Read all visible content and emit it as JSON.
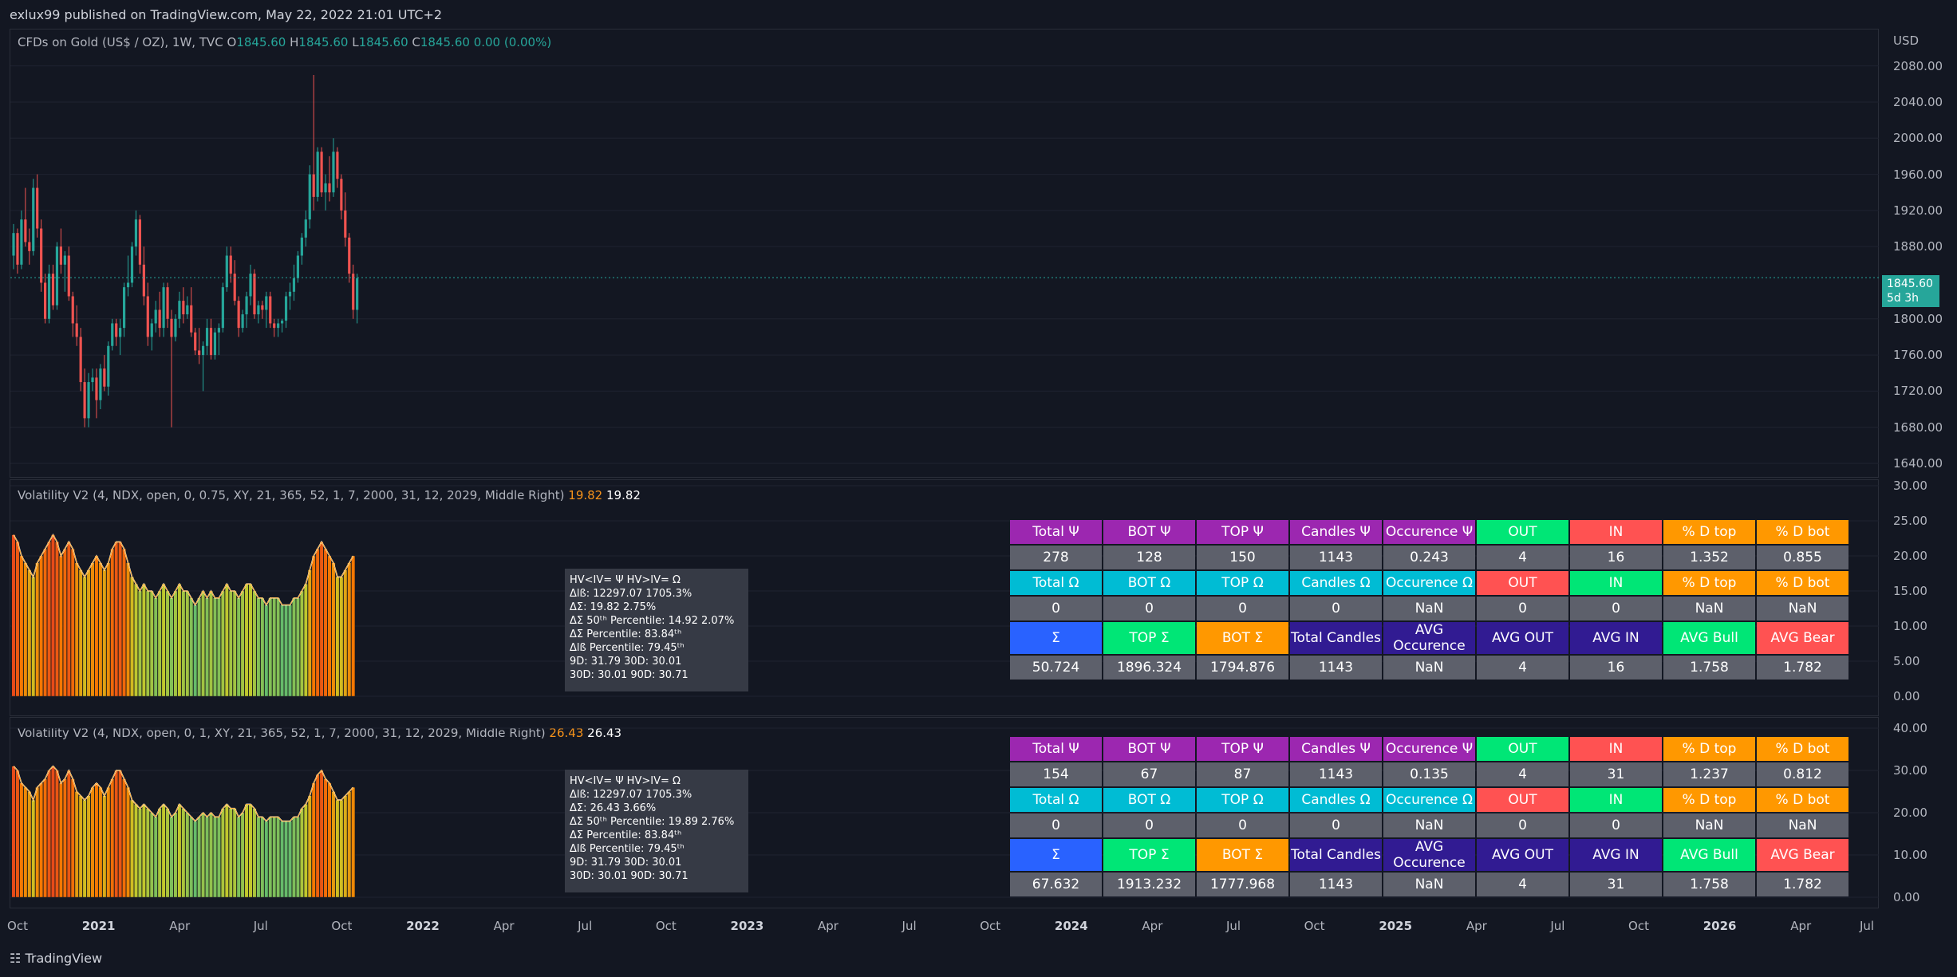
{
  "header": {
    "published": "exlux99 published on TradingView.com, May 22, 2022 21:01 UTC+2"
  },
  "main_pane": {
    "symbol": "CFDs on Gold (US$ / OZ), 1W, TVC",
    "o_label": "O",
    "o_value": "1845.60",
    "h_label": "H",
    "h_value": "1845.60",
    "l_label": "L",
    "l_value": "1845.60",
    "c_label": "C",
    "c_value": "1845.60",
    "change": "0.00 (0.00%)",
    "currency": "USD",
    "y_ticks": [
      "2080.00",
      "2040.00",
      "2000.00",
      "1960.00",
      "1920.00",
      "1880.00",
      "1800.00",
      "1760.00",
      "1720.00",
      "1680.00",
      "1640.00"
    ],
    "last_price": "1845.60",
    "countdown": "5d 3h",
    "up_color": "#26a69a",
    "down_color": "#ef5350",
    "candles": [
      [
        1870,
        1905,
        1855,
        1895
      ],
      [
        1895,
        1900,
        1850,
        1860
      ],
      [
        1860,
        1920,
        1855,
        1910
      ],
      [
        1910,
        1945,
        1880,
        1885
      ],
      [
        1885,
        1900,
        1860,
        1875
      ],
      [
        1875,
        1955,
        1870,
        1945
      ],
      [
        1945,
        1960,
        1890,
        1900
      ],
      [
        1900,
        1910,
        1830,
        1840
      ],
      [
        1840,
        1850,
        1795,
        1800
      ],
      [
        1800,
        1860,
        1795,
        1850
      ],
      [
        1850,
        1860,
        1810,
        1815
      ],
      [
        1815,
        1885,
        1810,
        1880
      ],
      [
        1880,
        1900,
        1850,
        1860
      ],
      [
        1860,
        1875,
        1830,
        1870
      ],
      [
        1870,
        1880,
        1820,
        1825
      ],
      [
        1825,
        1830,
        1780,
        1795
      ],
      [
        1795,
        1815,
        1770,
        1780
      ],
      [
        1780,
        1790,
        1720,
        1730
      ],
      [
        1730,
        1745,
        1680,
        1690
      ],
      [
        1690,
        1740,
        1680,
        1730
      ],
      [
        1730,
        1745,
        1720,
        1735
      ],
      [
        1735,
        1745,
        1690,
        1710
      ],
      [
        1710,
        1750,
        1700,
        1745
      ],
      [
        1745,
        1760,
        1720,
        1725
      ],
      [
        1725,
        1775,
        1715,
        1770
      ],
      [
        1770,
        1800,
        1765,
        1795
      ],
      [
        1795,
        1800,
        1770,
        1780
      ],
      [
        1780,
        1800,
        1760,
        1790
      ],
      [
        1790,
        1840,
        1780,
        1835
      ],
      [
        1835,
        1870,
        1825,
        1840
      ],
      [
        1840,
        1885,
        1835,
        1880
      ],
      [
        1880,
        1920,
        1870,
        1910
      ],
      [
        1910,
        1915,
        1850,
        1860
      ],
      [
        1860,
        1880,
        1815,
        1825
      ],
      [
        1825,
        1840,
        1770,
        1780
      ],
      [
        1780,
        1800,
        1765,
        1795
      ],
      [
        1795,
        1820,
        1785,
        1810
      ],
      [
        1810,
        1830,
        1780,
        1790
      ],
      [
        1790,
        1840,
        1780,
        1835
      ],
      [
        1835,
        1840,
        1790,
        1800
      ],
      [
        1800,
        1810,
        1680,
        1780
      ],
      [
        1780,
        1805,
        1775,
        1800
      ],
      [
        1800,
        1830,
        1790,
        1820
      ],
      [
        1820,
        1835,
        1795,
        1805
      ],
      [
        1805,
        1825,
        1800,
        1815
      ],
      [
        1815,
        1835,
        1780,
        1785
      ],
      [
        1785,
        1790,
        1760,
        1765
      ],
      [
        1765,
        1790,
        1750,
        1760
      ],
      [
        1760,
        1775,
        1720,
        1770
      ],
      [
        1770,
        1800,
        1760,
        1790
      ],
      [
        1790,
        1800,
        1755,
        1760
      ],
      [
        1760,
        1790,
        1755,
        1785
      ],
      [
        1785,
        1795,
        1760,
        1790
      ],
      [
        1790,
        1840,
        1785,
        1835
      ],
      [
        1835,
        1880,
        1830,
        1870
      ],
      [
        1870,
        1880,
        1840,
        1850
      ],
      [
        1850,
        1865,
        1815,
        1820
      ],
      [
        1820,
        1825,
        1780,
        1790
      ],
      [
        1790,
        1810,
        1785,
        1805
      ],
      [
        1805,
        1830,
        1790,
        1825
      ],
      [
        1825,
        1860,
        1815,
        1850
      ],
      [
        1850,
        1855,
        1800,
        1805
      ],
      [
        1805,
        1820,
        1795,
        1815
      ],
      [
        1815,
        1820,
        1800,
        1810
      ],
      [
        1810,
        1830,
        1790,
        1825
      ],
      [
        1825,
        1830,
        1790,
        1795
      ],
      [
        1795,
        1800,
        1780,
        1790
      ],
      [
        1790,
        1800,
        1780,
        1795
      ],
      [
        1795,
        1800,
        1785,
        1798
      ],
      [
        1798,
        1830,
        1790,
        1825
      ],
      [
        1825,
        1840,
        1810,
        1830
      ],
      [
        1830,
        1860,
        1820,
        1845
      ],
      [
        1845,
        1875,
        1840,
        1870
      ],
      [
        1870,
        1895,
        1860,
        1890
      ],
      [
        1890,
        1920,
        1880,
        1910
      ],
      [
        1910,
        1970,
        1900,
        1960
      ],
      [
        1960,
        2070,
        1920,
        1935
      ],
      [
        1935,
        1990,
        1930,
        1985
      ],
      [
        1985,
        1990,
        1935,
        1940
      ],
      [
        1940,
        1960,
        1920,
        1950
      ],
      [
        1950,
        1980,
        1930,
        1940
      ],
      [
        1940,
        2000,
        1935,
        1985
      ],
      [
        1985,
        1990,
        1945,
        1955
      ],
      [
        1955,
        1960,
        1910,
        1920
      ],
      [
        1920,
        1940,
        1880,
        1890
      ],
      [
        1890,
        1895,
        1840,
        1850
      ],
      [
        1850,
        1860,
        1800,
        1810
      ],
      [
        1810,
        1850,
        1795,
        1845
      ]
    ]
  },
  "pane2": {
    "title": "Volatility V2 (4, NDX, open, 0, 0.75, XY, 21, 365, 52, 1, 7, 2000, 31, 12, 2029, Middle Right)",
    "value_orange": "19.82",
    "value_white": "19.82",
    "y_ticks": [
      "30.00",
      "25.00",
      "20.00",
      "15.00",
      "10.00",
      "5.00",
      "0.00"
    ],
    "y_range": [
      0,
      30
    ],
    "infobox": [
      "HV<IV= Ψ  HV>IV= Ω",
      "Δlß: 12297.07  1705.3%",
      "ΔΣ: 19.82  2.75%",
      "ΔΣ 50ᵗʰ Percentile: 14.92  2.07%",
      "ΔΣ Percentile: 83.84ᵗʰ",
      "Δlß Percentile: 79.45ᵗʰ",
      "9D: 31.79  30D: 30.01",
      "30D: 30.01  90D: 30.71"
    ],
    "table": [
      [
        {
          "t": "Total Ψ",
          "c": "#9c27b0"
        },
        {
          "t": "BOT Ψ",
          "c": "#9c27b0"
        },
        {
          "t": "TOP Ψ",
          "c": "#9c27b0"
        },
        {
          "t": "Candles Ψ",
          "c": "#9c27b0"
        },
        {
          "t": "Occurence Ψ",
          "c": "#9c27b0"
        },
        {
          "t": "OUT",
          "c": "#00e676"
        },
        {
          "t": "IN",
          "c": "#ff5252"
        },
        {
          "t": "% D top",
          "c": "#ff9800"
        },
        {
          "t": "% D bot",
          "c": "#ff9800"
        }
      ],
      [
        {
          "t": "278",
          "c": "#5d606b"
        },
        {
          "t": "128",
          "c": "#5d606b"
        },
        {
          "t": "150",
          "c": "#5d606b"
        },
        {
          "t": "1143",
          "c": "#5d606b"
        },
        {
          "t": "0.243",
          "c": "#5d606b"
        },
        {
          "t": "4",
          "c": "#5d606b"
        },
        {
          "t": "16",
          "c": "#5d606b"
        },
        {
          "t": "1.352",
          "c": "#5d606b"
        },
        {
          "t": "0.855",
          "c": "#5d606b"
        }
      ],
      [
        {
          "t": "Total Ω",
          "c": "#00bcd4"
        },
        {
          "t": "BOT Ω",
          "c": "#00bcd4"
        },
        {
          "t": "TOP Ω",
          "c": "#00bcd4"
        },
        {
          "t": "Candles Ω",
          "c": "#00bcd4"
        },
        {
          "t": "Occurence Ω",
          "c": "#00bcd4"
        },
        {
          "t": "OUT",
          "c": "#ff5252"
        },
        {
          "t": "IN",
          "c": "#00e676"
        },
        {
          "t": "% D top",
          "c": "#ff9800"
        },
        {
          "t": "% D bot",
          "c": "#ff9800"
        }
      ],
      [
        {
          "t": "0",
          "c": "#5d606b"
        },
        {
          "t": "0",
          "c": "#5d606b"
        },
        {
          "t": "0",
          "c": "#5d606b"
        },
        {
          "t": "0",
          "c": "#5d606b"
        },
        {
          "t": "NaN",
          "c": "#5d606b"
        },
        {
          "t": "0",
          "c": "#5d606b"
        },
        {
          "t": "0",
          "c": "#5d606b"
        },
        {
          "t": "NaN",
          "c": "#5d606b"
        },
        {
          "t": "NaN",
          "c": "#5d606b"
        }
      ],
      [
        {
          "t": "Σ",
          "c": "#2962ff"
        },
        {
          "t": "TOP Σ",
          "c": "#00e676"
        },
        {
          "t": "BOT Σ",
          "c": "#ff9800"
        },
        {
          "t": "Total Candles",
          "c": "#311b92"
        },
        {
          "t": "AVG Occurence",
          "c": "#311b92"
        },
        {
          "t": "AVG OUT",
          "c": "#311b92"
        },
        {
          "t": "AVG IN",
          "c": "#311b92"
        },
        {
          "t": "AVG Bull",
          "c": "#00e676"
        },
        {
          "t": "AVG Bear",
          "c": "#ff5252"
        }
      ],
      [
        {
          "t": "50.724",
          "c": "#5d606b"
        },
        {
          "t": "1896.324",
          "c": "#5d606b"
        },
        {
          "t": "1794.876",
          "c": "#5d606b"
        },
        {
          "t": "1143",
          "c": "#5d606b"
        },
        {
          "t": "NaN",
          "c": "#5d606b"
        },
        {
          "t": "4",
          "c": "#5d606b"
        },
        {
          "t": "16",
          "c": "#5d606b"
        },
        {
          "t": "1.758",
          "c": "#5d606b"
        },
        {
          "t": "1.782",
          "c": "#5d606b"
        }
      ]
    ],
    "bars": [
      23,
      22,
      20,
      19,
      18,
      17,
      19,
      20,
      21,
      22,
      23,
      22,
      20,
      21,
      22,
      21,
      19,
      18,
      17,
      18,
      19,
      20,
      19,
      18,
      19,
      21,
      22,
      22,
      21,
      19,
      17,
      16,
      15,
      16,
      15,
      15,
      14,
      15,
      16,
      15,
      14,
      15,
      16,
      15,
      15,
      14,
      13,
      14,
      15,
      14,
      15,
      14,
      14,
      15,
      16,
      15,
      15,
      14,
      15,
      16,
      16,
      15,
      14,
      14,
      13,
      14,
      14,
      14,
      13,
      13,
      13,
      14,
      14,
      15,
      16,
      18,
      20,
      21,
      22,
      21,
      20,
      19,
      17,
      17,
      18,
      19,
      20
    ]
  },
  "pane3": {
    "title": "Volatility V2 (4, NDX, open, 0, 1, XY, 21, 365, 52, 1, 7, 2000, 31, 12, 2029, Middle Right)",
    "value_orange": "26.43",
    "value_white": "26.43",
    "y_ticks": [
      "40.00",
      "30.00",
      "20.00",
      "10.00",
      "0.00"
    ],
    "y_range": [
      0,
      40
    ],
    "infobox": [
      "HV<IV= Ψ  HV>IV= Ω",
      "Δlß: 12297.07  1705.3%",
      "ΔΣ: 26.43  3.66%",
      "ΔΣ 50ᵗʰ Percentile: 19.89  2.76%",
      "ΔΣ Percentile: 83.84ᵗʰ",
      "Δlß Percentile: 79.45ᵗʰ",
      "9D: 31.79  30D: 30.01",
      "30D: 30.01  90D: 30.71"
    ],
    "table": [
      [
        {
          "t": "Total Ψ",
          "c": "#9c27b0"
        },
        {
          "t": "BOT Ψ",
          "c": "#9c27b0"
        },
        {
          "t": "TOP Ψ",
          "c": "#9c27b0"
        },
        {
          "t": "Candles Ψ",
          "c": "#9c27b0"
        },
        {
          "t": "Occurence Ψ",
          "c": "#9c27b0"
        },
        {
          "t": "OUT",
          "c": "#00e676"
        },
        {
          "t": "IN",
          "c": "#ff5252"
        },
        {
          "t": "% D top",
          "c": "#ff9800"
        },
        {
          "t": "% D bot",
          "c": "#ff9800"
        }
      ],
      [
        {
          "t": "154",
          "c": "#5d606b"
        },
        {
          "t": "67",
          "c": "#5d606b"
        },
        {
          "t": "87",
          "c": "#5d606b"
        },
        {
          "t": "1143",
          "c": "#5d606b"
        },
        {
          "t": "0.135",
          "c": "#5d606b"
        },
        {
          "t": "4",
          "c": "#5d606b"
        },
        {
          "t": "31",
          "c": "#5d606b"
        },
        {
          "t": "1.237",
          "c": "#5d606b"
        },
        {
          "t": "0.812",
          "c": "#5d606b"
        }
      ],
      [
        {
          "t": "Total Ω",
          "c": "#00bcd4"
        },
        {
          "t": "BOT Ω",
          "c": "#00bcd4"
        },
        {
          "t": "TOP Ω",
          "c": "#00bcd4"
        },
        {
          "t": "Candles Ω",
          "c": "#00bcd4"
        },
        {
          "t": "Occurence Ω",
          "c": "#00bcd4"
        },
        {
          "t": "OUT",
          "c": "#ff5252"
        },
        {
          "t": "IN",
          "c": "#00e676"
        },
        {
          "t": "% D top",
          "c": "#ff9800"
        },
        {
          "t": "% D bot",
          "c": "#ff9800"
        }
      ],
      [
        {
          "t": "0",
          "c": "#5d606b"
        },
        {
          "t": "0",
          "c": "#5d606b"
        },
        {
          "t": "0",
          "c": "#5d606b"
        },
        {
          "t": "0",
          "c": "#5d606b"
        },
        {
          "t": "NaN",
          "c": "#5d606b"
        },
        {
          "t": "0",
          "c": "#5d606b"
        },
        {
          "t": "0",
          "c": "#5d606b"
        },
        {
          "t": "NaN",
          "c": "#5d606b"
        },
        {
          "t": "NaN",
          "c": "#5d606b"
        }
      ],
      [
        {
          "t": "Σ",
          "c": "#2962ff"
        },
        {
          "t": "TOP Σ",
          "c": "#00e676"
        },
        {
          "t": "BOT Σ",
          "c": "#ff9800"
        },
        {
          "t": "Total Candles",
          "c": "#311b92"
        },
        {
          "t": "AVG Occurence",
          "c": "#311b92"
        },
        {
          "t": "AVG OUT",
          "c": "#311b92"
        },
        {
          "t": "AVG IN",
          "c": "#311b92"
        },
        {
          "t": "AVG Bull",
          "c": "#00e676"
        },
        {
          "t": "AVG Bear",
          "c": "#ff5252"
        }
      ],
      [
        {
          "t": "67.632",
          "c": "#5d606b"
        },
        {
          "t": "1913.232",
          "c": "#5d606b"
        },
        {
          "t": "1777.968",
          "c": "#5d606b"
        },
        {
          "t": "1143",
          "c": "#5d606b"
        },
        {
          "t": "NaN",
          "c": "#5d606b"
        },
        {
          "t": "4",
          "c": "#5d606b"
        },
        {
          "t": "31",
          "c": "#5d606b"
        },
        {
          "t": "1.758",
          "c": "#5d606b"
        },
        {
          "t": "1.782",
          "c": "#5d606b"
        }
      ]
    ],
    "bars": [
      31,
      30,
      27,
      26,
      25,
      23,
      26,
      27,
      28,
      30,
      31,
      30,
      27,
      28,
      30,
      28,
      25,
      24,
      23,
      24,
      26,
      27,
      26,
      24,
      26,
      28,
      30,
      30,
      28,
      26,
      23,
      22,
      21,
      22,
      21,
      20,
      19,
      21,
      22,
      21,
      19,
      20,
      22,
      21,
      20,
      19,
      18,
      19,
      20,
      19,
      20,
      19,
      19,
      21,
      22,
      21,
      21,
      19,
      20,
      22,
      22,
      21,
      19,
      19,
      18,
      19,
      19,
      19,
      18,
      18,
      18,
      19,
      19,
      21,
      22,
      24,
      27,
      29,
      30,
      28,
      27,
      25,
      23,
      23,
      24,
      25,
      26
    ]
  },
  "x_axis": [
    {
      "t": "Oct",
      "b": false
    },
    {
      "t": "2021",
      "b": true
    },
    {
      "t": "Apr",
      "b": false
    },
    {
      "t": "Jul",
      "b": false
    },
    {
      "t": "Oct",
      "b": false
    },
    {
      "t": "2022",
      "b": true
    },
    {
      "t": "Apr",
      "b": false
    },
    {
      "t": "Jul",
      "b": false
    },
    {
      "t": "Oct",
      "b": false
    },
    {
      "t": "2023",
      "b": true
    },
    {
      "t": "Apr",
      "b": false
    },
    {
      "t": "Jul",
      "b": false
    },
    {
      "t": "Oct",
      "b": false
    },
    {
      "t": "2024",
      "b": true
    },
    {
      "t": "Apr",
      "b": false
    },
    {
      "t": "Jul",
      "b": false
    },
    {
      "t": "Oct",
      "b": false
    },
    {
      "t": "2025",
      "b": true
    },
    {
      "t": "Apr",
      "b": false
    },
    {
      "t": "Jul",
      "b": false
    },
    {
      "t": "Oct",
      "b": false
    },
    {
      "t": "2026",
      "b": true
    },
    {
      "t": "Apr",
      "b": false
    },
    {
      "t": "Jul",
      "b": false
    }
  ],
  "footer": {
    "logo_text": "TradingView"
  }
}
